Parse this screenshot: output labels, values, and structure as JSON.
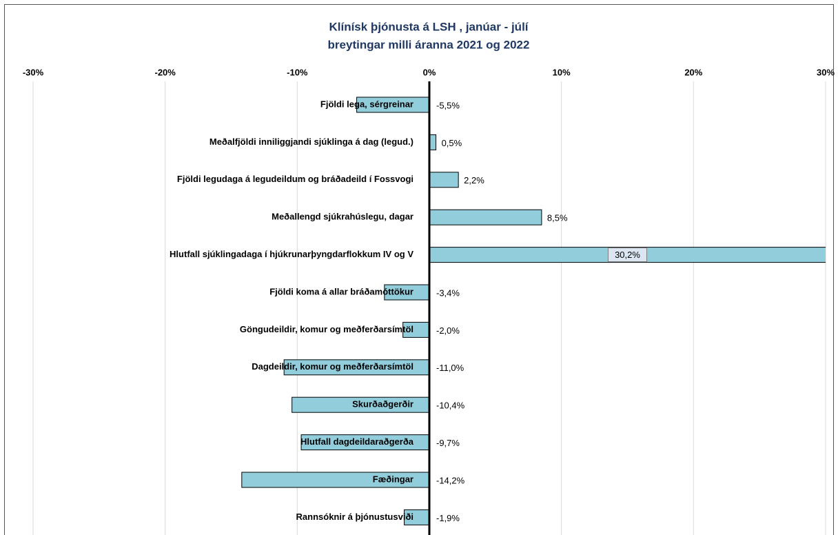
{
  "chart_data": {
    "type": "hbar",
    "title": [
      "Klínísk þjónusta á LSH ,  janúar - júlí",
      "breytingar milli áranna 2021 og 2022"
    ],
    "categories": [
      "Fjöldi lega, sérgreinar",
      "Meðalfjöldi inniliggjandi sjúklinga á dag (legud.)",
      "Fjöldi legudaga á legudeildum og bráðadeild í Fossvogi",
      "Meðallengd sjúkrahúslegu, dagar",
      "Hlutfall sjúklingadaga í hjúkrunarþyngdarflokkum IV og V",
      "Fjöldi koma á allar bráðamóttökur",
      "Göngudeildir, komur og meðferðarsímtöl",
      "Dagdeildir, komur og meðferðarsímtöl",
      "Skurðaðgerðir",
      "Hlutfall dagdeildaraðgerða",
      "Fæðingar",
      "Rannsóknir á þjónustusviði"
    ],
    "values": [
      -5.5,
      0.5,
      2.2,
      8.5,
      30.2,
      -3.4,
      -2.0,
      -11.0,
      -10.4,
      -9.7,
      -14.2,
      -1.9
    ],
    "value_labels": [
      "-5,5%",
      "0,5%",
      "2,2%",
      "8,5%",
      "30,2%",
      "-3,4%",
      "-2,0%",
      "-11,0%",
      "-10,4%",
      "-9,7%",
      "-14,2%",
      "-1,9%"
    ],
    "color": "#92cddc",
    "xlim": [
      -30,
      30
    ],
    "xticks": [
      {
        "value": -30,
        "label": "-30%"
      },
      {
        "value": -20,
        "label": "-20%"
      },
      {
        "value": -10,
        "label": "-10%"
      },
      {
        "value": 0,
        "label": "0%"
      },
      {
        "value": 10,
        "label": "10%"
      },
      {
        "value": 20,
        "label": "20%"
      },
      {
        "value": 30,
        "label": "30%"
      }
    ],
    "grid": true
  }
}
